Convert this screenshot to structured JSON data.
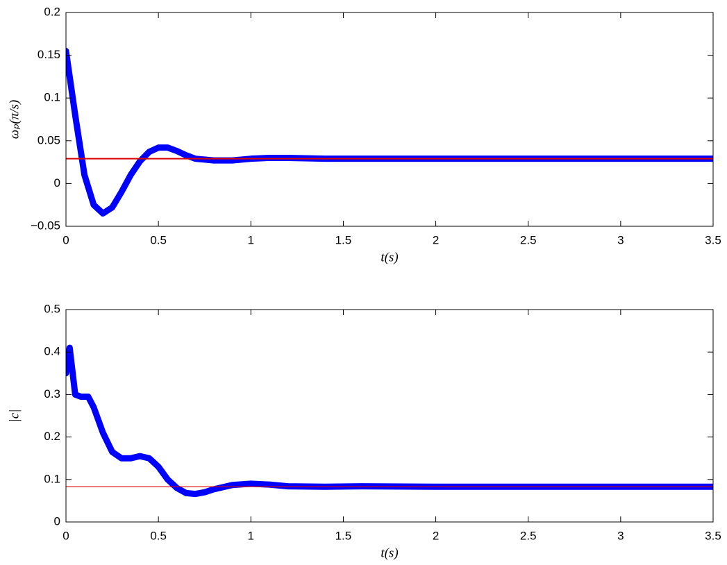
{
  "chart_data": [
    {
      "type": "line",
      "xlabel": "t(s)",
      "ylabel": "ωₚ(π/s)",
      "x": [
        0,
        0.05,
        0.1,
        0.15,
        0.2,
        0.25,
        0.3,
        0.35,
        0.4,
        0.45,
        0.5,
        0.55,
        0.6,
        0.65,
        0.7,
        0.8,
        0.9,
        1.0,
        1.1,
        1.2,
        1.4,
        1.6,
        2.0,
        2.5,
        3.0,
        3.5
      ],
      "series": [
        {
          "color": "#0000ff",
          "width": 9,
          "values": [
            0.155,
            0.08,
            0.01,
            -0.025,
            -0.035,
            -0.028,
            -0.01,
            0.01,
            0.026,
            0.037,
            0.042,
            0.042,
            0.038,
            0.033,
            0.029,
            0.027,
            0.027,
            0.029,
            0.03,
            0.03,
            0.029,
            0.029,
            0.029,
            0.029,
            0.029,
            0.029
          ]
        },
        {
          "color": "#dd0000",
          "width": 2,
          "values": [
            0.029,
            0.029,
            0.029,
            0.029,
            0.029,
            0.029,
            0.029,
            0.029,
            0.029,
            0.029,
            0.029,
            0.029,
            0.029,
            0.029,
            0.029,
            0.029,
            0.029,
            0.029,
            0.029,
            0.029,
            0.029,
            0.029,
            0.029,
            0.029,
            0.029,
            0.029
          ]
        }
      ],
      "xlim": [
        0,
        3.5
      ],
      "xticks": [
        0,
        0.5,
        1,
        1.5,
        2,
        2.5,
        3,
        3.5
      ],
      "ylim": [
        -0.05,
        0.2
      ],
      "yticks": [
        {
          "value": -0.05,
          "label": "−0.05"
        },
        0,
        0.05,
        0.1,
        0.15,
        0.2
      ]
    },
    {
      "type": "line",
      "xlabel": "t(s)",
      "ylabel": "|c|",
      "x": [
        0,
        0.02,
        0.05,
        0.08,
        0.12,
        0.15,
        0.2,
        0.25,
        0.3,
        0.35,
        0.4,
        0.45,
        0.5,
        0.55,
        0.6,
        0.65,
        0.7,
        0.75,
        0.8,
        0.9,
        1.0,
        1.1,
        1.2,
        1.4,
        1.6,
        2.0,
        2.5,
        3.0,
        3.5
      ],
      "series": [
        {
          "color": "#0000ff",
          "width": 9,
          "values": [
            0.35,
            0.41,
            0.3,
            0.295,
            0.295,
            0.27,
            0.21,
            0.165,
            0.15,
            0.15,
            0.155,
            0.15,
            0.13,
            0.1,
            0.08,
            0.068,
            0.066,
            0.07,
            0.077,
            0.087,
            0.09,
            0.088,
            0.084,
            0.083,
            0.084,
            0.083,
            0.083,
            0.083,
            0.083
          ]
        },
        {
          "color": "#dd0000",
          "width": 1.2,
          "values": [
            0.083,
            0.083,
            0.083,
            0.083,
            0.083,
            0.083,
            0.083,
            0.083,
            0.083,
            0.083,
            0.083,
            0.083,
            0.083,
            0.083,
            0.083,
            0.083,
            0.083,
            0.083,
            0.083,
            0.083,
            0.083,
            0.083,
            0.083,
            0.083,
            0.083,
            0.083,
            0.083,
            0.083,
            0.083
          ]
        }
      ],
      "xlim": [
        0,
        3.5
      ],
      "xticks": [
        0,
        0.5,
        1,
        1.5,
        2,
        2.5,
        3,
        3.5
      ],
      "ylim": [
        0,
        0.5
      ],
      "yticks": [
        0,
        0.1,
        0.2,
        0.3,
        0.4,
        0.5
      ]
    }
  ]
}
